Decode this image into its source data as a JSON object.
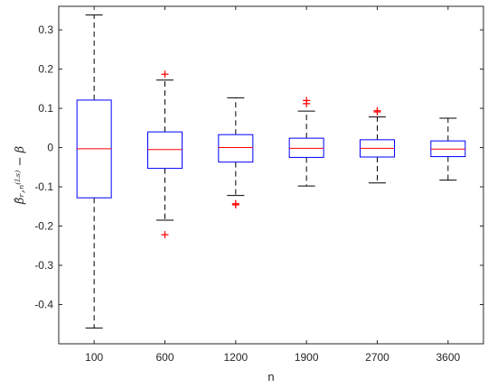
{
  "chart_data": {
    "type": "boxplot",
    "title": "",
    "xlabel": "n",
    "ylabel": "β̂ᵣ,ₙ⁽ᴸˢ⁾ − β",
    "ylim": [
      -0.5,
      0.36
    ],
    "yticks": [
      -0.4,
      -0.3,
      -0.2,
      -0.1,
      0,
      0.1,
      0.2,
      0.3
    ],
    "ytick_labels": [
      "-0.4",
      "-0.3",
      "-0.2",
      "-0.1",
      "0",
      "0.1",
      "0.2",
      "0.3"
    ],
    "grid": false,
    "categories": [
      "100",
      "600",
      "1200",
      "1900",
      "2700",
      "3600"
    ],
    "boxes": [
      {
        "whisker_low": -0.46,
        "q1": -0.128,
        "median": -0.003,
        "q3": 0.121,
        "whisker_high": 0.338,
        "outliers": []
      },
      {
        "whisker_low": -0.185,
        "q1": -0.053,
        "median": -0.005,
        "q3": 0.04,
        "whisker_high": 0.172,
        "outliers": [
          0.187,
          -0.222
        ]
      },
      {
        "whisker_low": -0.122,
        "q1": -0.037,
        "median": 0.0,
        "q3": 0.033,
        "whisker_high": 0.127,
        "outliers": [
          -0.143,
          -0.146
        ]
      },
      {
        "whisker_low": -0.098,
        "q1": -0.025,
        "median": -0.002,
        "q3": 0.024,
        "whisker_high": 0.093,
        "outliers": [
          0.112,
          0.12
        ]
      },
      {
        "whisker_low": -0.09,
        "q1": -0.024,
        "median": -0.002,
        "q3": 0.02,
        "whisker_high": 0.078,
        "outliers": [
          0.091,
          0.094
        ]
      },
      {
        "whisker_low": -0.083,
        "q1": -0.023,
        "median": -0.004,
        "q3": 0.017,
        "whisker_high": 0.075,
        "outliers": []
      }
    ],
    "colors": {
      "box": "#0000ff",
      "median": "#ff0000",
      "whisker": "#000000",
      "outlier": "#ff0000",
      "axis": "#262626"
    }
  }
}
